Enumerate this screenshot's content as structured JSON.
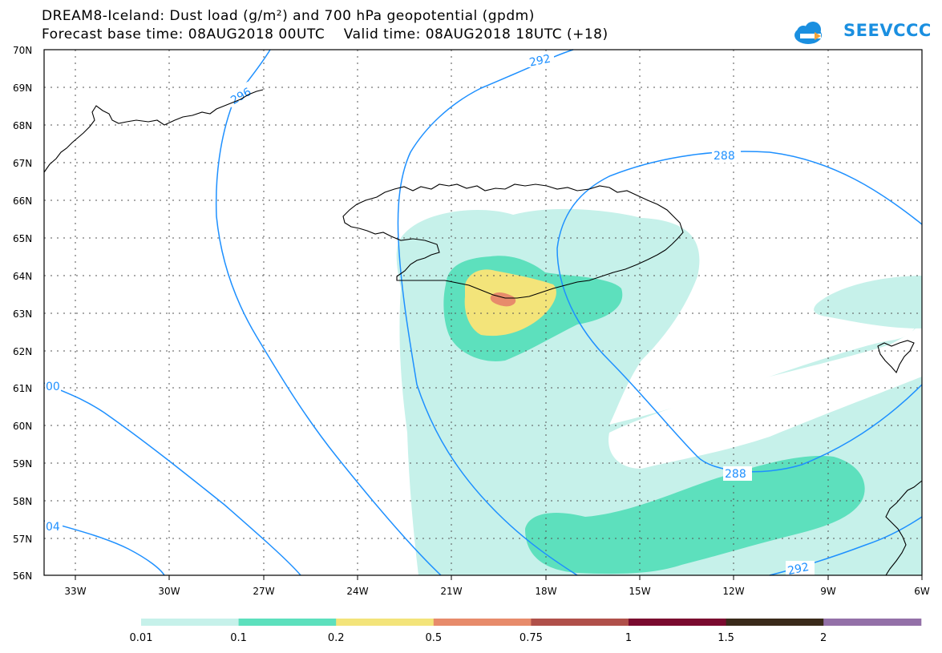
{
  "title_line1": "DREAM8-Iceland: Dust load (g/m²) and 700 hPa geopotential (gpdm)",
  "title_line2": "Forecast base time: 08AUG2018 00UTC    Valid time: 08AUG2018 18UTC (+18)",
  "logo_text": "SEEVCCC",
  "lat_labels": [
    "70N",
    "69N",
    "68N",
    "67N",
    "66N",
    "65N",
    "64N",
    "63N",
    "62N",
    "61N",
    "60N",
    "59N",
    "58N",
    "57N",
    "56N"
  ],
  "lon_labels": [
    "33W",
    "30W",
    "27W",
    "24W",
    "21W",
    "18W",
    "15W",
    "12W",
    "9W",
    "6W"
  ],
  "contour_labels": [
    "292",
    "296",
    "288",
    "00",
    "288",
    "04",
    "292"
  ],
  "colorbar": {
    "labels": [
      "0.01",
      "0.1",
      "0.2",
      "0.5",
      "0.75",
      "1",
      "1.5",
      "2"
    ],
    "colors": [
      "#c6f1ea",
      "#5de0bd",
      "#f3e47a",
      "#e78b6b",
      "#b0504a",
      "#7a0a2f",
      "#3a2a1a",
      "#9370a8"
    ]
  },
  "colors": {
    "contour": "#1e90ff",
    "coast": "#000000",
    "grid": "#555555"
  }
}
